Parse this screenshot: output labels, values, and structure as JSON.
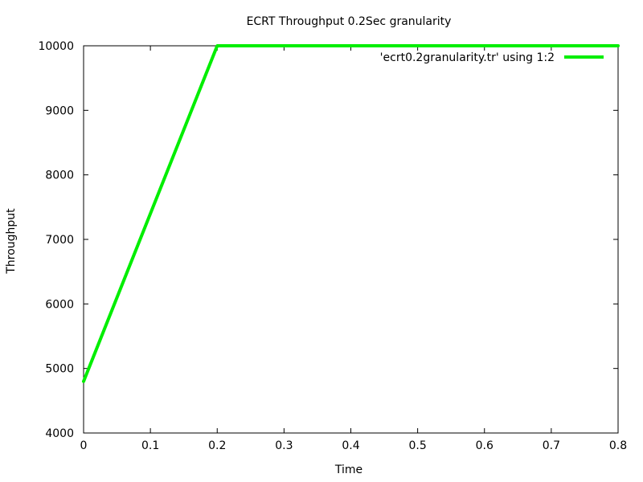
{
  "chart_data": {
    "type": "line",
    "title": "ECRT Throughput 0.2Sec granularity",
    "xlabel": "Time",
    "ylabel": "Throughput",
    "xlim": [
      0,
      0.8
    ],
    "ylim": [
      4000,
      10000
    ],
    "x_ticks": [
      "0",
      "0.1",
      "0.2",
      "0.3",
      "0.4",
      "0.5",
      "0.6",
      "0.7",
      "0.8"
    ],
    "y_ticks": [
      "4000",
      "5000",
      "6000",
      "7000",
      "8000",
      "9000",
      "10000"
    ],
    "grid": false,
    "legend_position": "top-right",
    "series": [
      {
        "name": "'ecrt0.2granularity.tr' using 1:2",
        "color": "#00ee00",
        "x": [
          0,
          0.2,
          0.4,
          0.6,
          0.8
        ],
        "y": [
          4800,
          10000,
          10000,
          10000,
          10000
        ]
      }
    ]
  }
}
